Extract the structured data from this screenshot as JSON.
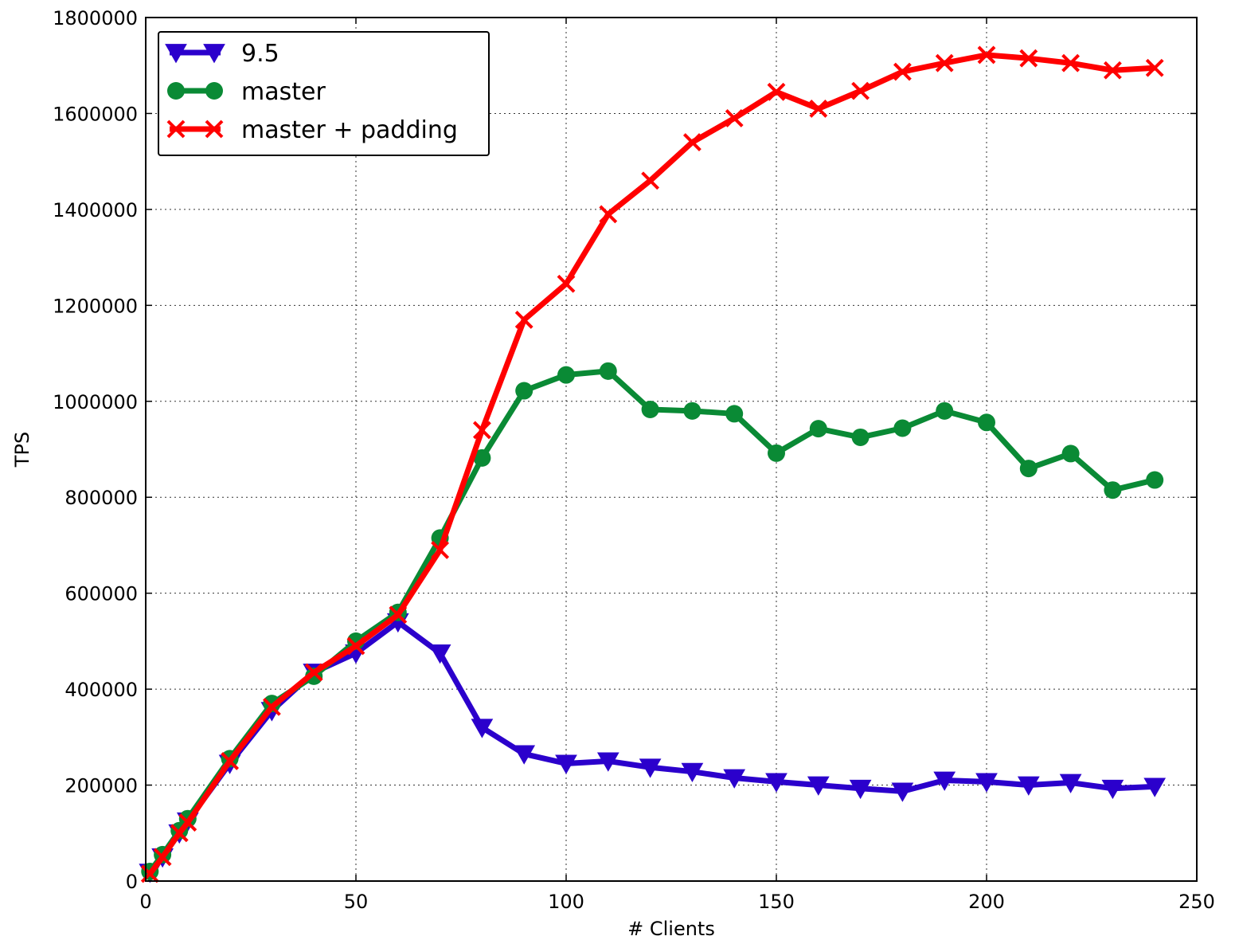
{
  "chart_data": {
    "type": "line",
    "xlabel": "# Clients",
    "ylabel": "TPS",
    "xlim": [
      0,
      250
    ],
    "ylim": [
      0,
      1800000
    ],
    "xticks": [
      0,
      50,
      100,
      150,
      200,
      250
    ],
    "yticks": [
      0,
      200000,
      400000,
      600000,
      800000,
      1000000,
      1200000,
      1400000,
      1600000,
      1800000
    ],
    "grid": true,
    "legend_position": "top-left",
    "series": [
      {
        "name": "9.5",
        "color": "#2b00cc",
        "marker": "triangle-down",
        "x": [
          1,
          4,
          8,
          10,
          20,
          30,
          40,
          50,
          60,
          70,
          80,
          90,
          100,
          110,
          120,
          130,
          140,
          150,
          160,
          170,
          180,
          190,
          200,
          210,
          220,
          230,
          240
        ],
        "y": [
          18000,
          50000,
          100000,
          125000,
          245000,
          355000,
          435000,
          475000,
          540000,
          475000,
          320000,
          265000,
          245000,
          250000,
          237000,
          228000,
          215000,
          207000,
          200000,
          193000,
          187000,
          210000,
          207000,
          200000,
          205000,
          193000,
          197000
        ]
      },
      {
        "name": "master",
        "color": "#0a8a35",
        "marker": "circle",
        "x": [
          1,
          4,
          8,
          10,
          20,
          30,
          40,
          50,
          60,
          70,
          80,
          90,
          100,
          110,
          120,
          130,
          140,
          150,
          160,
          170,
          180,
          190,
          200,
          210,
          220,
          230,
          240
        ],
        "y": [
          20000,
          55000,
          105000,
          130000,
          255000,
          370000,
          427000,
          500000,
          560000,
          715000,
          882000,
          1022000,
          1055000,
          1063000,
          983000,
          980000,
          974000,
          892000,
          943000,
          925000,
          944000,
          980000,
          956000,
          860000,
          891000,
          815000,
          836000
        ]
      },
      {
        "name": "master + padding",
        "color": "#ff0000",
        "marker": "x",
        "x": [
          1,
          4,
          8,
          10,
          20,
          30,
          40,
          50,
          60,
          70,
          80,
          90,
          100,
          110,
          120,
          130,
          140,
          150,
          160,
          170,
          180,
          190,
          200,
          210,
          220,
          230,
          240
        ],
        "y": [
          15000,
          50000,
          100000,
          122000,
          250000,
          363000,
          435000,
          490000,
          555000,
          690000,
          940000,
          1170000,
          1245000,
          1390000,
          1460000,
          1540000,
          1590000,
          1645000,
          1610000,
          1647000,
          1687000,
          1705000,
          1722000,
          1715000,
          1705000,
          1690000,
          1695000
        ]
      }
    ]
  }
}
